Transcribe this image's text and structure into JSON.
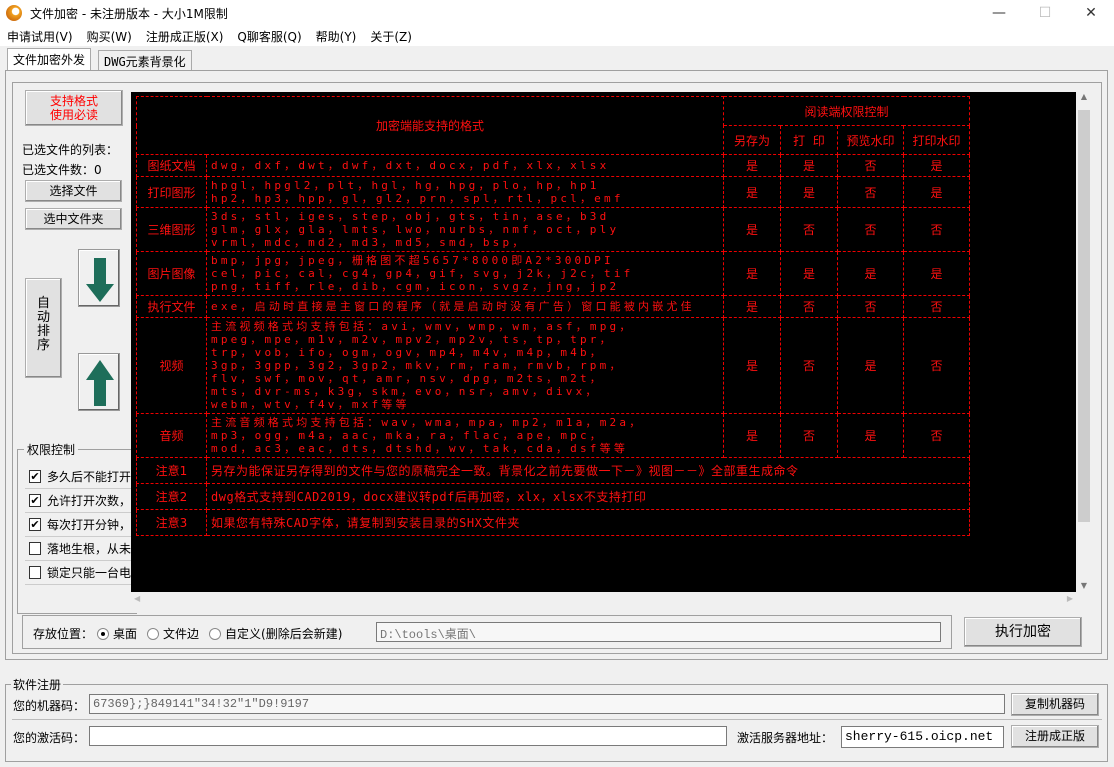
{
  "window": {
    "title": "文件加密 - 未注册版本 - 大小1M限制",
    "minimize": "—",
    "maximize": "☐",
    "close": "✕"
  },
  "menu": [
    "申请试用(V)",
    "购买(W)",
    "注册成正版(X)",
    "Q聊客服(Q)",
    "帮助(Y)",
    "关于(Z)"
  ],
  "tabs": [
    {
      "label": "文件加密外发",
      "active": true
    },
    {
      "label": "DWG元素背景化",
      "active": false
    }
  ],
  "left": {
    "support_btn_line1": "支持格式",
    "support_btn_line2": "使用必读",
    "file_list_label": "已选文件的列表：",
    "file_count_label": "已选文件数：0",
    "select_file": "选择文件",
    "select_folder": "选中文件夹",
    "auto_sort": "自动排序",
    "colors": {
      "arrow": "#1e6e5a",
      "support_text": "#ff0000"
    }
  },
  "permissions": {
    "title": "权限控制",
    "items": [
      {
        "label": "多久后不能打开",
        "checked": true
      },
      {
        "label": "允许打开次数，",
        "checked": true
      },
      {
        "label": "每次打开分钟，",
        "checked": true
      },
      {
        "label": "落地生根，从未",
        "checked": false
      },
      {
        "label": "锁定只能一台电",
        "checked": false
      }
    ]
  },
  "table": {
    "header_formats": "加密端能支持的格式",
    "header_reader": "阅读端权限控制",
    "perm_headers": [
      "另存为",
      "打  印",
      "预览水印",
      "打印水印"
    ],
    "rows": [
      {
        "label": "图纸文档",
        "formats": "dwg，dxf，dwt，dwf，dxt，docx，pdf，xlx，xlsx",
        "perms": [
          "是",
          "是",
          "否",
          "是"
        ]
      },
      {
        "label": "打印图形",
        "formats": "hpgl，hpgl2，plt，hgl，hg，hpg，plo，hp，hp1\nhp2，hp3，hpp，gl，gl2，prn，spl，rtl，pcl，emf",
        "perms": [
          "是",
          "是",
          "否",
          "是"
        ]
      },
      {
        "label": "三维图形",
        "formats": "3ds，stl，iges，step，obj，gts，tin，ase，b3d\nglm，glx，gla，lmts，lwo，nurbs，nmf，oct，ply\nvrml，mdc，md2，md3，md5，smd，bsp，",
        "perms": [
          "是",
          "否",
          "否",
          "否"
        ]
      },
      {
        "label": "图片图像",
        "formats": "bmp，jpg，jpeg，栅格图不超5657*8000即A2*300DPI\ncel，pic，cal，cg4，gp4，gif，svg，j2k，j2c，tif\npng，tiff，rle，dib，cgm，icon，svgz，jng，jp2",
        "perms": [
          "是",
          "是",
          "是",
          "是"
        ]
      },
      {
        "label": "执行文件",
        "formats": "exe，启动时直接是主窗口的程序（就是启动时没有广告）窗口能被内嵌尤佳",
        "perms": [
          "是",
          "否",
          "否",
          "否"
        ]
      },
      {
        "label": "视频",
        "formats": "主流视频格式均支持包括：avi，wmv，wmp，wm，asf，mpg，\nmpeg，mpe，m1v，m2v，mpv2，mp2v，ts，tp，tpr，\ntrp，vob，ifo，ogm，ogv，mp4，m4v，m4p，m4b，\n3gp，3gpp，3g2，3gp2，mkv，rm，ram，rmvb，rpm，\nflv，swf，mov，qt，amr，nsv，dpg，m2ts，m2t，\nmts，dvr-ms，k3g，skm，evo，nsr，amv，divx，\nwebm，wtv，f4v，mxf等等",
        "perms": [
          "是",
          "否",
          "是",
          "否"
        ]
      },
      {
        "label": "音频",
        "formats": "主流音频格式均支持包括：wav，wma，mpa，mp2，m1a，m2a，\nmp3，ogg，m4a，aac，mka，ra，flac，ape，mpc，\nmod，ac3，eac，dts，dtshd，wv，tak，cda，dsf等等",
        "perms": [
          "是",
          "否",
          "是",
          "否"
        ]
      }
    ],
    "notes": [
      {
        "label": "注意1",
        "text": "另存为能保证另存得到的文件与您的原稿完全一致。背景化之前先要做一下－》视图－－》全部重生成命令"
      },
      {
        "label": "注意2",
        "text": "dwg格式支持到CAD2019，docx建议转pdf后再加密，xlx，xlsx不支持打印"
      },
      {
        "label": "注意3",
        "text": "如果您有特殊CAD字体，请复制到安装目录的SHX文件夹"
      }
    ],
    "colors": {
      "background": "#000000",
      "text": "#ff1010"
    }
  },
  "save": {
    "label": "存放位置：",
    "options": [
      {
        "label": "桌面",
        "selected": true
      },
      {
        "label": "文件边",
        "selected": false
      },
      {
        "label": "自定义(删除后会新建)",
        "selected": false
      }
    ],
    "path": "D:\\tools\\桌面\\",
    "execute": "执行加密"
  },
  "register": {
    "title": "软件注册",
    "machine_label": "您的机器码：",
    "machine_code": "67369};}849141\"34!32\"1\"D9!9197",
    "copy_btn": "复制机器码",
    "activation_label": "您的激活码：",
    "activation_code": "",
    "server_label": "激活服务器地址：",
    "server": "sherry-615.oicp.net",
    "register_btn": "注册成正版"
  }
}
